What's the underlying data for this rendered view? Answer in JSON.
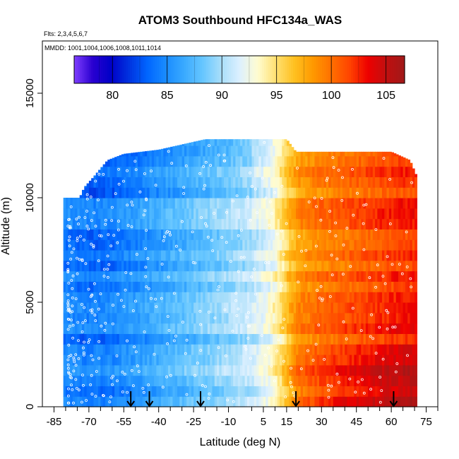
{
  "chart_data": {
    "type": "heatmap",
    "title": "ATOM3 Southbound HFC134a_WAS",
    "flights_label": "Flts: 2,3,4,5,6,7",
    "dates_label": "MMDD: 1001,1004,1006,1008,1011,1014",
    "xlabel": "Latitude (deg N)",
    "ylabel": "Altitude (m)",
    "xlim": [
      -90,
      80
    ],
    "ylim": [
      0,
      17500
    ],
    "x_ticks": [
      -85,
      -70,
      -55,
      -40,
      -25,
      -10,
      5,
      15,
      30,
      45,
      60,
      75
    ],
    "x_minor_ticks": [
      -80,
      -75,
      -65,
      -60,
      -50,
      -45,
      -35,
      -30,
      -20,
      -15,
      0,
      10,
      20,
      25,
      35,
      40,
      50,
      55,
      65,
      70,
      80
    ],
    "y_ticks": [
      0,
      5000,
      10000,
      15000
    ],
    "colorbar": {
      "min": 76.5,
      "max": 106.7,
      "ticks": [
        80,
        85,
        90,
        95,
        100,
        105
      ],
      "colors": [
        "#7f3fff",
        "#2a00d0",
        "#0000c8",
        "#0033e0",
        "#0066ff",
        "#1a8cff",
        "#3aaaff",
        "#66c6ff",
        "#a8defa",
        "#dcf0ff",
        "#fffcd0",
        "#ffe070",
        "#ffc020",
        "#ff9900",
        "#ff7000",
        "#ff4400",
        "#ee0000",
        "#c01010",
        "#a01818"
      ]
    },
    "field": {
      "lat_range": [
        -81,
        71
      ],
      "layer_thickness_m": 500,
      "top_altitude_by_latitude": [
        [
          -81,
          10000
        ],
        [
          -74,
          10000
        ],
        [
          -72,
          10500
        ],
        [
          -68,
          11000
        ],
        [
          -62,
          11800
        ],
        [
          -55,
          12100
        ],
        [
          -40,
          12300
        ],
        [
          -20,
          12800
        ],
        [
          15,
          12800
        ],
        [
          19,
          12200
        ],
        [
          40,
          12200
        ],
        [
          60,
          12200
        ],
        [
          68,
          11800
        ],
        [
          71,
          11000
        ]
      ],
      "value_profile_by_latitude": [
        [
          -81,
          84.5
        ],
        [
          -70,
          83.8
        ],
        [
          -60,
          84.2
        ],
        [
          -50,
          85.2
        ],
        [
          -40,
          86.3
        ],
        [
          -30,
          87.3
        ],
        [
          -20,
          88.3
        ],
        [
          -10,
          89.3
        ],
        [
          0,
          90.6
        ],
        [
          8,
          92.3
        ],
        [
          12,
          94.0
        ],
        [
          16,
          96.3
        ],
        [
          20,
          98.3
        ],
        [
          30,
          99.6
        ],
        [
          40,
          100.3
        ],
        [
          50,
          101.0
        ],
        [
          60,
          101.8
        ],
        [
          71,
          102.3
        ]
      ],
      "boundary_layer_enhancement_by_latitude": [
        [
          -81,
          0
        ],
        [
          10,
          0
        ],
        [
          20,
          1.5
        ],
        [
          40,
          3.0
        ],
        [
          71,
          3.6
        ]
      ],
      "sample_count": 460
    },
    "profile_markers_lat": [
      -52,
      -44,
      -22,
      19,
      61
    ]
  }
}
